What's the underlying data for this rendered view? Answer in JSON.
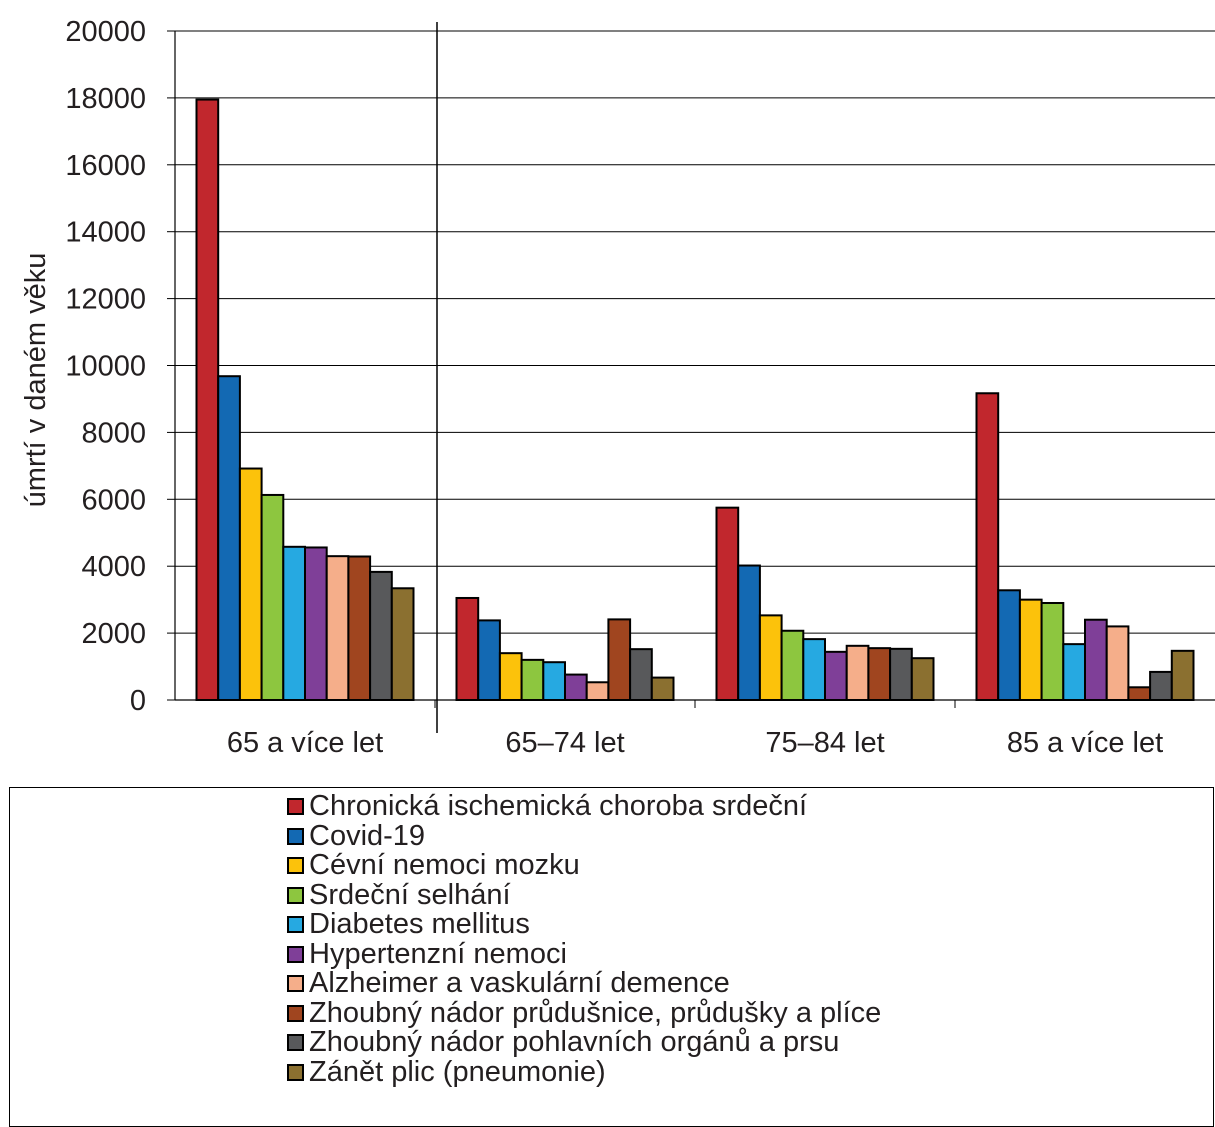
{
  "chart_data": {
    "type": "bar",
    "title": "",
    "xlabel": "",
    "ylabel": "úmrtí v daném věku",
    "ylim": [
      0,
      20000
    ],
    "yticks": [
      "0",
      "2000",
      "4000",
      "6000",
      "8000",
      "10000",
      "12000",
      "14000",
      "16000",
      "18000",
      "20000"
    ],
    "grid": true,
    "legend_position": "bottom",
    "categories": [
      "65 a více let",
      "65–74 let",
      "75–84 let",
      "85 a více let"
    ],
    "series": [
      {
        "name": "Chronická ischemická choroba srdeční",
        "color": "#c1272d",
        "values": [
          17950,
          3050,
          5750,
          9170
        ]
      },
      {
        "name": "Covid-19",
        "color": "#1369b3",
        "values": [
          9680,
          2380,
          4020,
          3280
        ]
      },
      {
        "name": "Cévní nemoci mozku",
        "color": "#fcc20b",
        "values": [
          6920,
          1400,
          2530,
          3000
        ]
      },
      {
        "name": "Srdeční selhání",
        "color": "#8dc63f",
        "values": [
          6130,
          1200,
          2070,
          2900
        ]
      },
      {
        "name": "Diabetes mellitus",
        "color": "#26a9e1",
        "values": [
          4580,
          1130,
          1820,
          1670
        ]
      },
      {
        "name": "Hypertenzní nemoci",
        "color": "#7f3f98",
        "values": [
          4560,
          760,
          1440,
          2400
        ]
      },
      {
        "name": "Alzheimer a vaskulární demence",
        "color": "#f5ae8a",
        "values": [
          4300,
          530,
          1620,
          2200
        ]
      },
      {
        "name": "Zhoubný nádor průdušnice, průdušky a plíce",
        "color": "#a0451f",
        "values": [
          4290,
          2410,
          1550,
          380
        ]
      },
      {
        "name": "Zhoubný nádor pohlavních orgánů a prsu",
        "color": "#58595b",
        "values": [
          3830,
          1520,
          1530,
          840
        ]
      },
      {
        "name": "Zánět plic (pneumonie)",
        "color": "#8b7030",
        "values": [
          3340,
          670,
          1250,
          1470
        ]
      }
    ]
  }
}
